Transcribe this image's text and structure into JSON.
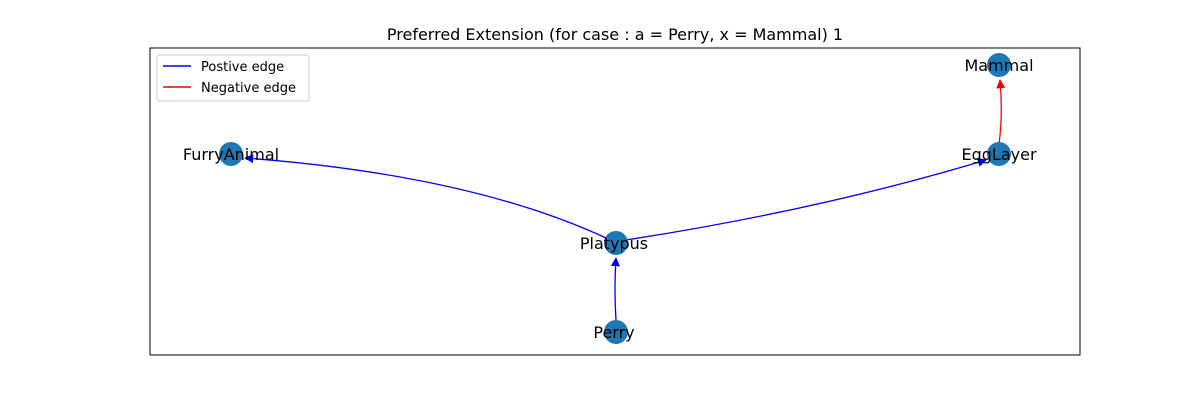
{
  "title": "Preferred Extension (for case : a = Perry, x = Mammal) 1",
  "legend": {
    "items": [
      {
        "label": "Postive edge",
        "color": "#0000ff"
      },
      {
        "label": "Negative edge",
        "color": "#ff0000"
      }
    ]
  },
  "node_color": "#1f77b4",
  "nodes": {
    "mammal": "Mammal",
    "furry": "FurryAnimal",
    "egglayer": "EggLayer",
    "platypus": "Platypus",
    "perry": "Perry"
  },
  "edges": [
    {
      "from": "Perry",
      "to": "Platypus",
      "type": "positive"
    },
    {
      "from": "Platypus",
      "to": "FurryAnimal",
      "type": "positive"
    },
    {
      "from": "Platypus",
      "to": "EggLayer",
      "type": "positive"
    },
    {
      "from": "EggLayer",
      "to": "Mammal",
      "type": "negative"
    }
  ]
}
